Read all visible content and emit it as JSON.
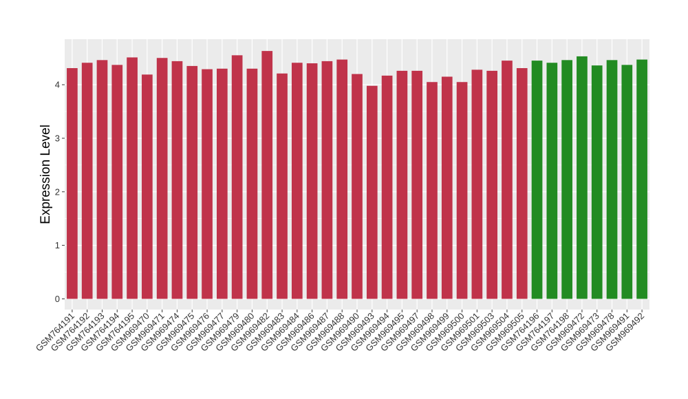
{
  "chart_data": {
    "type": "bar",
    "ylabel": "Expression Level",
    "xlabel": "",
    "ylim": [
      -0.2,
      4.85
    ],
    "yticks": [
      0,
      1,
      2,
      3,
      4
    ],
    "grid": true,
    "legend": "none",
    "colors": {
      "group_a": "#c0334a",
      "group_b": "#228b22",
      "panel": "#ebebeb",
      "grid": "#ffffff"
    },
    "categories": [
      "GSM764191",
      "GSM764192",
      "GSM764193",
      "GSM764194",
      "GSM764195",
      "GSM969470",
      "GSM969471",
      "GSM969474",
      "GSM969475",
      "GSM969476",
      "GSM969477",
      "GSM969479",
      "GSM969480",
      "GSM969482",
      "GSM969483",
      "GSM969484",
      "GSM969486",
      "GSM969487",
      "GSM969488",
      "GSM969490",
      "GSM969493",
      "GSM969494",
      "GSM969495",
      "GSM969497",
      "GSM969498",
      "GSM969499",
      "GSM969500",
      "GSM969501",
      "GSM969503",
      "GSM969504",
      "GSM969505",
      "GSM764196",
      "GSM764197",
      "GSM764198",
      "GSM969472",
      "GSM969473",
      "GSM969478",
      "GSM969491",
      "GSM969492"
    ],
    "values": [
      4.31,
      4.41,
      4.46,
      4.37,
      4.51,
      4.19,
      4.5,
      4.44,
      4.35,
      4.29,
      4.3,
      4.55,
      4.3,
      4.63,
      4.21,
      4.41,
      4.4,
      4.44,
      4.47,
      4.2,
      3.98,
      4.17,
      4.26,
      4.26,
      4.05,
      4.15,
      4.05,
      4.28,
      4.26,
      4.45,
      4.31,
      4.45,
      4.41,
      4.46,
      4.53,
      4.36,
      4.46,
      4.37,
      4.47
    ],
    "groups": [
      "group_a",
      "group_a",
      "group_a",
      "group_a",
      "group_a",
      "group_a",
      "group_a",
      "group_a",
      "group_a",
      "group_a",
      "group_a",
      "group_a",
      "group_a",
      "group_a",
      "group_a",
      "group_a",
      "group_a",
      "group_a",
      "group_a",
      "group_a",
      "group_a",
      "group_a",
      "group_a",
      "group_a",
      "group_a",
      "group_a",
      "group_a",
      "group_a",
      "group_a",
      "group_a",
      "group_a",
      "group_b",
      "group_b",
      "group_b",
      "group_b",
      "group_b",
      "group_b",
      "group_b",
      "group_b"
    ]
  }
}
